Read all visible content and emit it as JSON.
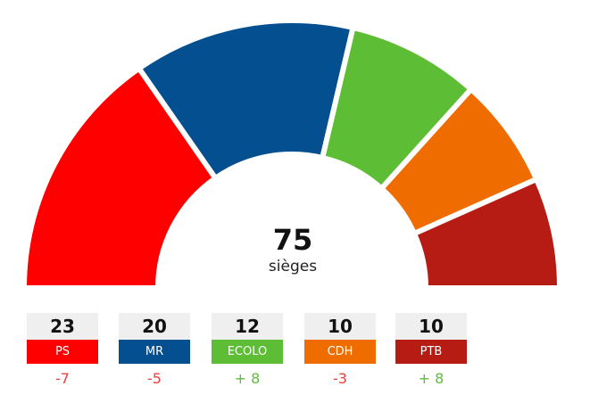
{
  "chart_data": {
    "type": "pie",
    "subtype": "parliament-hemicycle",
    "total": "75",
    "total_label": "sièges",
    "categories": [
      "PS",
      "MR",
      "ECOLO",
      "CDH",
      "PTB"
    ],
    "values": [
      23,
      20,
      12,
      10,
      10
    ],
    "changes": [
      "-7",
      "-5",
      "+ 8",
      "-3",
      "+ 8"
    ],
    "colors": [
      "#ff0000",
      "#034f8f",
      "#5dbd34",
      "#ef6d00",
      "#b71c14"
    ],
    "change_colors": {
      "negative": "#e8413f",
      "positive": "#5dbd3a"
    }
  }
}
